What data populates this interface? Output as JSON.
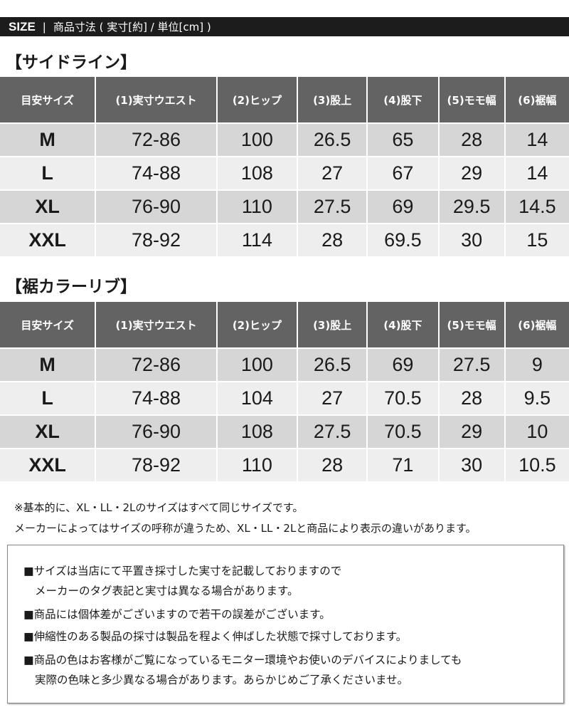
{
  "header": {
    "size_label": "SIZE",
    "separator": "|",
    "subtitle": "商品寸法 ( 実寸[約] / 単位[cm] )"
  },
  "columns": [
    "目安サイズ",
    "(1)実寸ウエスト",
    "(2)ヒップ",
    "(3)股上",
    "(4)股下",
    "(5)モモ幅",
    "(6)裾幅"
  ],
  "tables": [
    {
      "title": "【サイドライン】",
      "rows": [
        [
          "M",
          "72-86",
          "100",
          "26.5",
          "65",
          "28",
          "14"
        ],
        [
          "L",
          "74-88",
          "108",
          "27",
          "67",
          "29",
          "14"
        ],
        [
          "XL",
          "76-90",
          "110",
          "27.5",
          "69",
          "29.5",
          "14.5"
        ],
        [
          "XXL",
          "78-92",
          "114",
          "28",
          "69.5",
          "30",
          "15"
        ]
      ]
    },
    {
      "title": "【裾カラーリブ】",
      "rows": [
        [
          "M",
          "72-86",
          "100",
          "26.5",
          "69",
          "27.5",
          "9"
        ],
        [
          "L",
          "74-88",
          "104",
          "27",
          "70.5",
          "28",
          "9.5"
        ],
        [
          "XL",
          "76-90",
          "108",
          "27.5",
          "70.5",
          "29",
          "10"
        ],
        [
          "XXL",
          "78-92",
          "110",
          "28",
          "71",
          "30",
          "10.5"
        ]
      ]
    }
  ],
  "notes": [
    "※基本的に、XL・LL・2Lのサイズはすべて同じサイズです。",
    "メーカーによってはサイズの呼称が違うため、XL・LL・2Lと商品により表示の違いがあります。"
  ],
  "box": [
    "■サイズは当店にて平置き採寸した実寸を記載しておりますので",
    "メーカーのタグ表記と実寸は異なる場合があります。",
    "■商品には個体差がございますので若干の誤差がございます。",
    "■伸縮性のある製品の採寸は製品を程よく伸ばした状態で採寸しております。",
    "■商品の色はお客様がご覧になっているモニター環境やお使いのデバイスによりましても",
    "実際の色味と多少異なる場合があります。あらかじめご了承くださいませ。"
  ]
}
